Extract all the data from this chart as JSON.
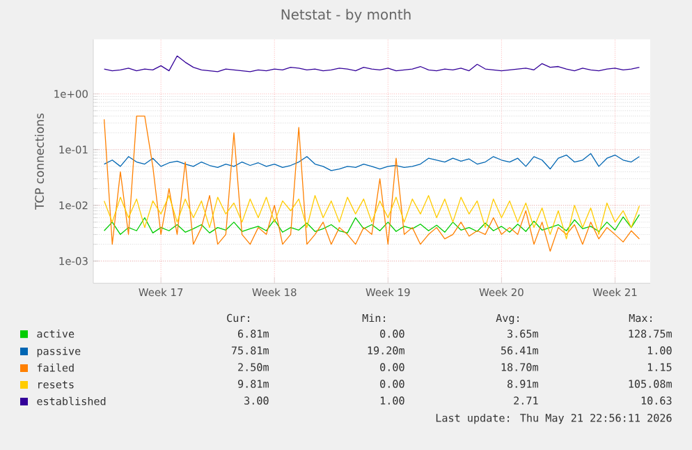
{
  "chart_data": {
    "type": "line",
    "title": "Netstat - by month",
    "ylabel": "TCP connections",
    "log": "y",
    "grid": true,
    "legend": "bottom",
    "line_style": "solid",
    "marker": "none",
    "ylim": [
      0.0004,
      9.5
    ],
    "yticks": [
      {
        "value": 0.001,
        "label": "1e-03"
      },
      {
        "value": 0.01,
        "label": "1e-02"
      },
      {
        "value": 0.1,
        "label": "1e-01"
      },
      {
        "value": 1,
        "label": "1e+00"
      }
    ],
    "categories": [
      null,
      null,
      null,
      null,
      null,
      null,
      null,
      "Week 17",
      null,
      null,
      null,
      null,
      null,
      null,
      null,
      null,
      null,
      null,
      null,
      null,
      null,
      "Week 18",
      null,
      null,
      null,
      null,
      null,
      null,
      null,
      null,
      null,
      null,
      null,
      null,
      null,
      "Week 19",
      null,
      null,
      null,
      null,
      null,
      null,
      null,
      null,
      null,
      null,
      null,
      null,
      null,
      "Week 20",
      null,
      null,
      null,
      null,
      null,
      null,
      null,
      null,
      null,
      null,
      null,
      null,
      null,
      "Week 21",
      null,
      null,
      null
    ],
    "series": [
      {
        "name": "active",
        "color": "#00cc00",
        "values": [
          0.0035,
          0.005,
          0.003,
          0.004,
          0.0035,
          0.006,
          0.0032,
          0.004,
          0.0035,
          0.0045,
          0.0033,
          0.0038,
          0.0045,
          0.0032,
          0.004,
          0.0036,
          0.005,
          0.0034,
          0.0038,
          0.0042,
          0.0035,
          0.0055,
          0.0033,
          0.004,
          0.0036,
          0.0048,
          0.0034,
          0.0038,
          0.0045,
          0.0035,
          0.0032,
          0.006,
          0.0038,
          0.0045,
          0.0035,
          0.005,
          0.0034,
          0.0042,
          0.0038,
          0.0046,
          0.0035,
          0.0044,
          0.0033,
          0.005,
          0.0036,
          0.004,
          0.0034,
          0.0048,
          0.0035,
          0.0042,
          0.0033,
          0.0046,
          0.0034,
          0.0052,
          0.0036,
          0.004,
          0.0045,
          0.0035,
          0.0055,
          0.0038,
          0.0042,
          0.0034,
          0.005,
          0.0036,
          0.0062,
          0.004,
          0.0068
        ]
      },
      {
        "name": "passive",
        "color": "#0066b3",
        "values": [
          0.055,
          0.065,
          0.05,
          0.075,
          0.06,
          0.055,
          0.07,
          0.05,
          0.058,
          0.062,
          0.055,
          0.05,
          0.06,
          0.052,
          0.048,
          0.055,
          0.05,
          0.06,
          0.052,
          0.058,
          0.05,
          0.055,
          0.048,
          0.052,
          0.06,
          0.075,
          0.055,
          0.05,
          0.042,
          0.045,
          0.05,
          0.048,
          0.055,
          0.05,
          0.045,
          0.05,
          0.052,
          0.048,
          0.05,
          0.055,
          0.07,
          0.065,
          0.06,
          0.07,
          0.062,
          0.068,
          0.055,
          0.06,
          0.075,
          0.065,
          0.06,
          0.07,
          0.05,
          0.075,
          0.065,
          0.045,
          0.07,
          0.08,
          0.06,
          0.065,
          0.085,
          0.05,
          0.07,
          0.08,
          0.065,
          0.06,
          0.075
        ]
      },
      {
        "name": "failed",
        "color": "#ff8000",
        "values": [
          0.35,
          0.002,
          0.04,
          0.003,
          0.4,
          0.4,
          0.05,
          0.003,
          0.02,
          0.003,
          0.06,
          0.002,
          0.004,
          0.015,
          0.002,
          0.003,
          0.2,
          0.003,
          0.002,
          0.004,
          0.003,
          0.01,
          0.002,
          0.003,
          0.25,
          0.002,
          0.003,
          0.005,
          0.002,
          0.004,
          0.003,
          0.002,
          0.004,
          0.003,
          0.03,
          0.002,
          0.07,
          0.003,
          0.004,
          0.002,
          0.003,
          0.004,
          0.0025,
          0.003,
          0.005,
          0.0028,
          0.0035,
          0.003,
          0.006,
          0.003,
          0.004,
          0.003,
          0.008,
          0.002,
          0.005,
          0.0015,
          0.004,
          0.003,
          0.0045,
          0.002,
          0.005,
          0.0025,
          0.004,
          0.003,
          0.0022,
          0.0035,
          0.0025
        ]
      },
      {
        "name": "resets",
        "color": "#ffcc00",
        "values": [
          0.012,
          0.005,
          0.014,
          0.006,
          0.013,
          0.004,
          0.012,
          0.007,
          0.015,
          0.005,
          0.013,
          0.006,
          0.012,
          0.004,
          0.014,
          0.007,
          0.011,
          0.005,
          0.013,
          0.006,
          0.014,
          0.005,
          0.012,
          0.008,
          0.013,
          0.004,
          0.015,
          0.006,
          0.012,
          0.005,
          0.014,
          0.007,
          0.013,
          0.005,
          0.012,
          0.006,
          0.014,
          0.005,
          0.013,
          0.007,
          0.015,
          0.006,
          0.013,
          0.005,
          0.014,
          0.007,
          0.012,
          0.004,
          0.013,
          0.006,
          0.012,
          0.005,
          0.011,
          0.004,
          0.009,
          0.003,
          0.008,
          0.0025,
          0.01,
          0.004,
          0.009,
          0.003,
          0.011,
          0.005,
          0.008,
          0.004,
          0.0098
        ]
      },
      {
        "name": "established",
        "color": "#330099",
        "values": [
          2.8,
          2.6,
          2.7,
          2.9,
          2.6,
          2.8,
          2.7,
          3.2,
          2.6,
          4.8,
          3.7,
          3.0,
          2.7,
          2.6,
          2.5,
          2.8,
          2.7,
          2.6,
          2.5,
          2.7,
          2.6,
          2.8,
          2.7,
          3.0,
          2.9,
          2.7,
          2.8,
          2.6,
          2.7,
          2.9,
          2.8,
          2.6,
          3.0,
          2.8,
          2.7,
          2.9,
          2.6,
          2.7,
          2.8,
          3.1,
          2.7,
          2.6,
          2.8,
          2.7,
          2.9,
          2.6,
          3.4,
          2.8,
          2.7,
          2.6,
          2.7,
          2.8,
          2.9,
          2.7,
          3.5,
          3.0,
          3.1,
          2.8,
          2.6,
          2.9,
          2.7,
          2.6,
          2.8,
          2.9,
          2.7,
          2.8,
          3.0
        ]
      }
    ],
    "annotations": [
      "Cur:",
      "Min:",
      "Avg:",
      "Max:",
      "6.81m",
      "0.00",
      "3.65m",
      "128.75m",
      "75.81m",
      "19.20m",
      "56.41m",
      "1.00",
      "2.50m",
      "0.00",
      "18.70m",
      "1.15",
      "9.81m",
      "0.00",
      "8.91m",
      "105.08m",
      "3.00",
      "1.00",
      "2.71",
      "10.63",
      "Last update: Thu May 21 22:56:11 2026"
    ]
  }
}
